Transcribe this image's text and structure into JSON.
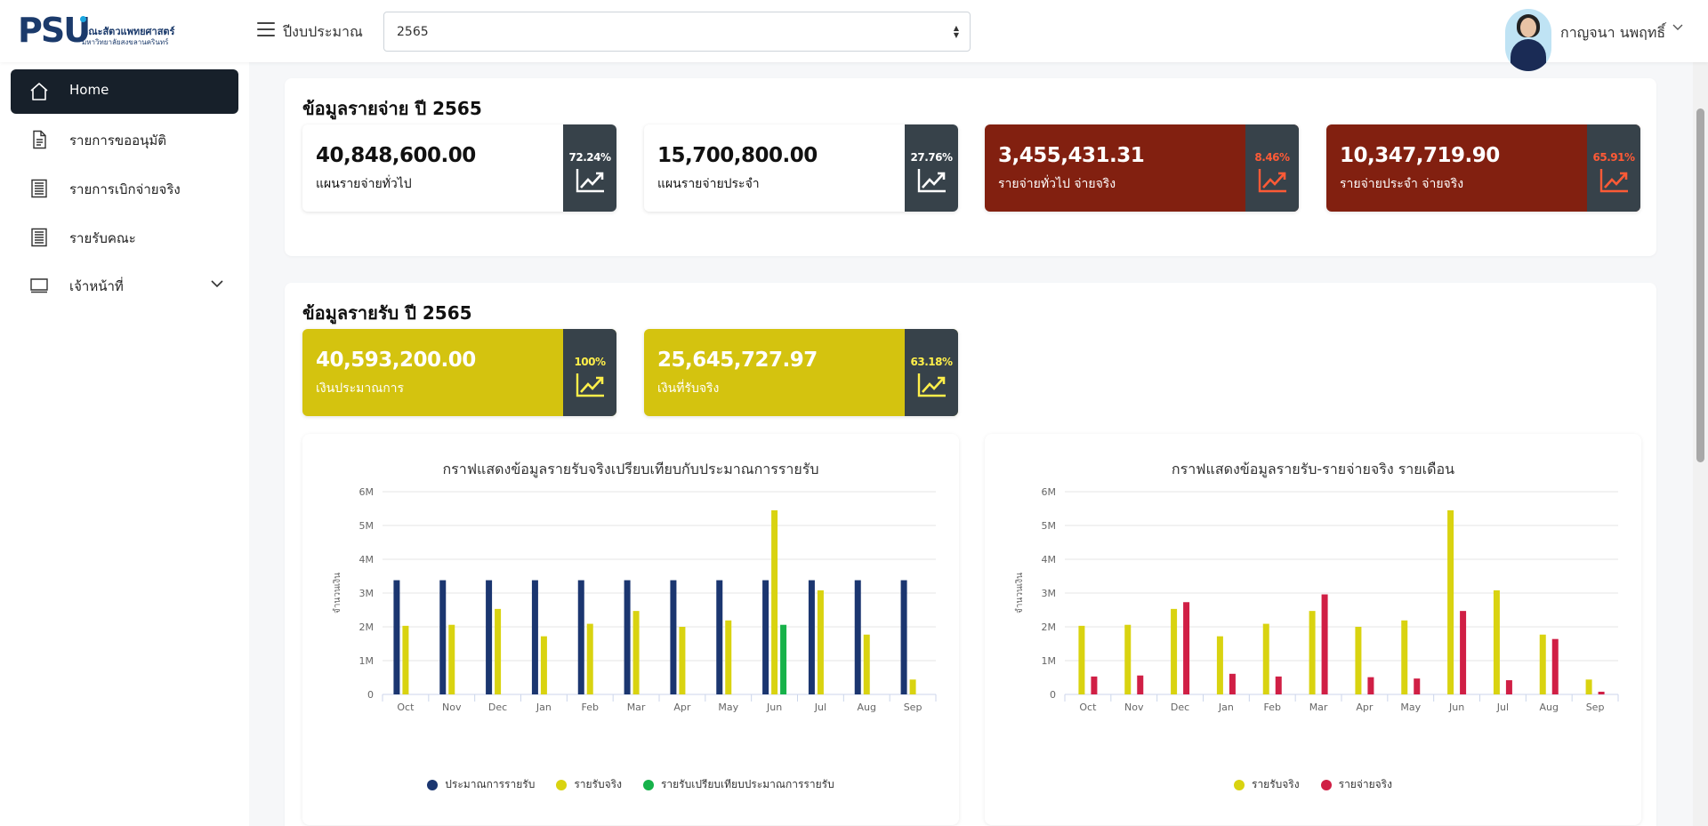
{
  "header": {
    "logo_mark": "PSU",
    "logo_line1": "คณะสัตวแพทยศาสตร์",
    "logo_line2": "มหาวิทยาลัยสงขลานครินทร์",
    "budget_label": "ปีงบประมาณ",
    "selected_year": "2565",
    "user_name": "กาญจนา นพฤทธิ์"
  },
  "sidebar": {
    "items": [
      {
        "label": "Home",
        "icon": "home-icon",
        "active": true
      },
      {
        "label": "รายการขออนุมัติ",
        "icon": "document-icon"
      },
      {
        "label": "รายการเบิกจ่ายจริง",
        "icon": "receipt-icon"
      },
      {
        "label": "รายรับคณะ",
        "icon": "receipt-icon"
      },
      {
        "label": "เจ้าหน้าที่",
        "icon": "monitor-icon",
        "has_submenu": true
      }
    ]
  },
  "expense": {
    "title": "ข้อมูลรายจ่าย ปี 2565",
    "cards": [
      {
        "value": "40,848,600.00",
        "label": "แผนรายจ่ายทั่วไป",
        "percent": "72.24%",
        "style": "white"
      },
      {
        "value": "15,700,800.00",
        "label": "แผนรายจ่ายประจำ",
        "percent": "27.76%",
        "style": "white"
      },
      {
        "value": "3,455,431.31",
        "label": "รายจ่ายทั่วไป จ่ายจริง",
        "percent": "8.46%",
        "style": "red"
      },
      {
        "value": "10,347,719.90",
        "label": "รายจ่ายประจำ จ่ายจริง",
        "percent": "65.91%",
        "style": "red"
      }
    ]
  },
  "income": {
    "title": "ข้อมูลรายรับ ปี 2565",
    "cards": [
      {
        "value": "40,593,200.00",
        "label": "เงินประมาณการ",
        "percent": "100%",
        "style": "yellow"
      },
      {
        "value": "25,645,727.97",
        "label": "เงินที่รับจริง",
        "percent": "63.18%",
        "style": "yellow"
      }
    ]
  },
  "colors": {
    "navy": "#1b3670",
    "yellow": "#d9d310",
    "green": "#17b24a",
    "crimson": "#d01f45",
    "expense_red": "#822010",
    "income_yellow": "#d4c30f",
    "dark_slate": "#37424a"
  },
  "chart_data": [
    {
      "type": "bar",
      "title": "กราฟแสดงข้อมูลรายรับจริงเปรียบเทียบกับประมาณการรายรับ",
      "ylabel": "จำนวนเงิน",
      "ylim": [
        0,
        6000000
      ],
      "yticks": [
        "0",
        "1M",
        "2M",
        "3M",
        "4M",
        "5M",
        "6M"
      ],
      "categories": [
        "Oct",
        "Nov",
        "Dec",
        "Jan",
        "Feb",
        "Mar",
        "Apr",
        "May",
        "Jun",
        "Jul",
        "Aug",
        "Sep"
      ],
      "grid": true,
      "legend": "bottom",
      "series": [
        {
          "name": "ประมาณการรายรับ",
          "color": "#1b3670",
          "values": [
            3380000,
            3380000,
            3380000,
            3380000,
            3380000,
            3380000,
            3380000,
            3380000,
            3380000,
            3380000,
            3380000,
            3380000
          ]
        },
        {
          "name": "รายรับจริง",
          "color": "#d9d310",
          "values": [
            2030000,
            2060000,
            2530000,
            1720000,
            2090000,
            2470000,
            2000000,
            2190000,
            5450000,
            3080000,
            1770000,
            440000
          ]
        },
        {
          "name": "รายรับเปรียบเทียบประมาณการรายรับ",
          "color": "#17b24a",
          "values": [
            null,
            null,
            null,
            null,
            null,
            null,
            null,
            null,
            2060000,
            null,
            null,
            null
          ]
        }
      ]
    },
    {
      "type": "bar",
      "title": "กราฟแสดงข้อมูลรายรับ-รายจ่ายจริง รายเดือน",
      "ylabel": "จำนวนเงิน",
      "ylim": [
        0,
        6000000
      ],
      "yticks": [
        "0",
        "1M",
        "2M",
        "3M",
        "4M",
        "5M",
        "6M"
      ],
      "categories": [
        "Oct",
        "Nov",
        "Dec",
        "Jan",
        "Feb",
        "Mar",
        "Apr",
        "May",
        "Jun",
        "Jul",
        "Aug",
        "Sep"
      ],
      "grid": true,
      "legend": "bottom",
      "series": [
        {
          "name": "รายรับจริง",
          "color": "#d9d310",
          "values": [
            2030000,
            2060000,
            2530000,
            1720000,
            2090000,
            2470000,
            2000000,
            2190000,
            5450000,
            3080000,
            1770000,
            440000
          ]
        },
        {
          "name": "รายจ่ายจริง",
          "color": "#d01f45",
          "values": [
            530000,
            560000,
            2730000,
            610000,
            530000,
            2960000,
            510000,
            470000,
            2470000,
            420000,
            1640000,
            80000
          ]
        }
      ]
    }
  ]
}
